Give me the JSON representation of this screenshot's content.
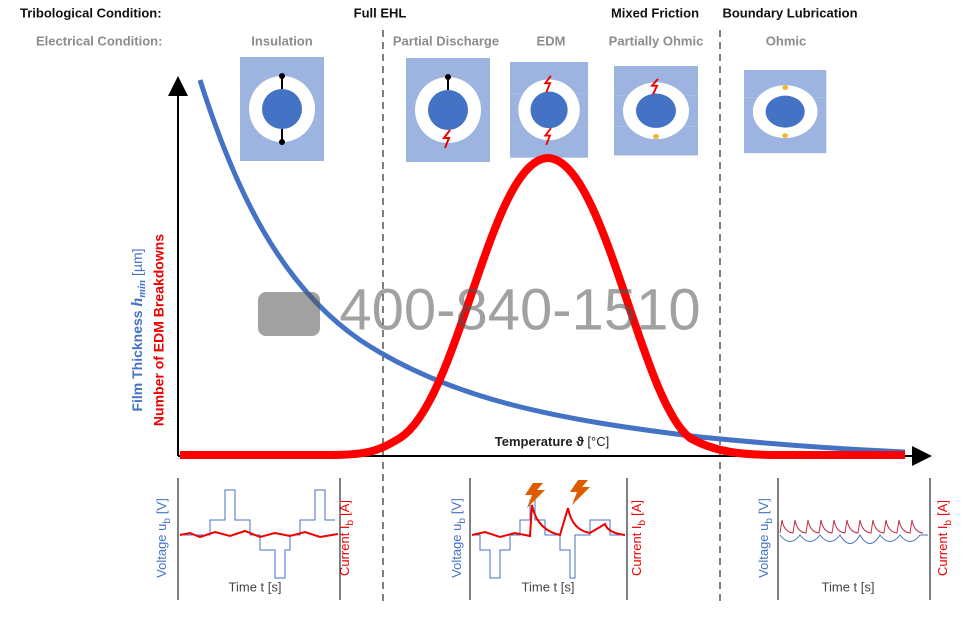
{
  "tribological": {
    "label": "Tribological Condition:",
    "regimes": [
      "Full EHL",
      "Mixed Friction",
      "Boundary Lubrication"
    ]
  },
  "electrical": {
    "label": "Electrical Condition:",
    "states": [
      "Insulation",
      "Partial Discharge",
      "EDM",
      "Partially Ohmic",
      "Ohmic"
    ]
  },
  "axes": {
    "film": {
      "name": "Film Thickness",
      "symbol": "h",
      "subscript": "min",
      "unit": "[µm]"
    },
    "edm": "Number of EDM Breakdowns",
    "temperature": {
      "name": "Temperature",
      "symbol": "ϑ",
      "unit": "[°C]"
    }
  },
  "panels": [
    {
      "voltage": {
        "name": "Voltage u",
        "subscript": "b",
        "unit": "[V]"
      },
      "current": {
        "name": "Current I",
        "subscript": "b",
        "unit": "[A]"
      },
      "time": "Time t [s]"
    },
    {
      "voltage": {
        "name": "Voltage u",
        "subscript": "b",
        "unit": "[V]"
      },
      "current": {
        "name": "Current I",
        "subscript": "b",
        "unit": "[A]"
      },
      "time": "Time t [s]"
    },
    {
      "voltage": {
        "name": "Voltage u",
        "subscript": "b",
        "unit": "[V]"
      },
      "current": {
        "name": "Current I",
        "subscript": "b",
        "unit": "[A]"
      },
      "time": "Time t [s]"
    }
  ],
  "watermark": "400-840-1510"
}
